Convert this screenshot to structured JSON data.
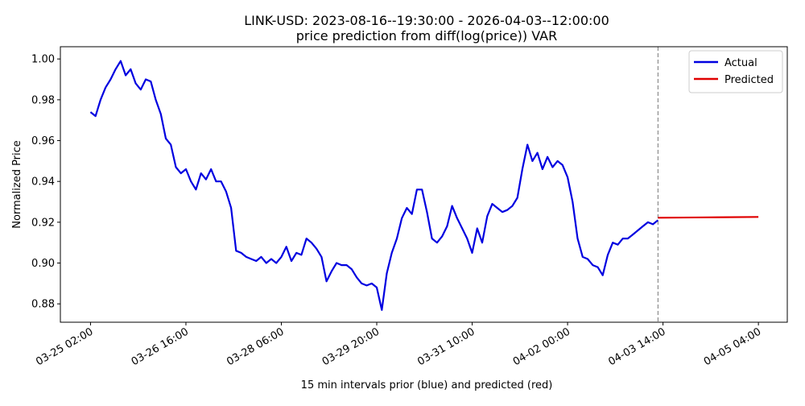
{
  "chart_data": {
    "type": "line",
    "title": "LINK-USD: 2023-08-16--19:30:00 - 2026-04-03--12:00:00",
    "subtitle": "price prediction from diff(log(price)) VAR",
    "xlabel": "15 min intervals prior (blue) and predicted (red)",
    "ylabel": "Normalized Price",
    "xlim": [
      "03-24 14:00",
      "04-05 15:30"
    ],
    "xticks": [
      "03-25 02:00",
      "03-26 16:00",
      "03-28 06:00",
      "03-29 20:00",
      "03-31 10:00",
      "04-02 00:00",
      "04-03 14:00",
      "04-05 04:00"
    ],
    "ylim": [
      0.871,
      1.006
    ],
    "yticks": [
      0.88,
      {
        "value": 0.9,
        "label": "0.90"
      },
      0.92,
      0.94,
      0.96,
      0.98,
      {
        "value": 1,
        "label": "1.00"
      }
    ],
    "vline": "04-03 12:00",
    "legend": "upper right",
    "series": [
      {
        "name": "Actual",
        "color": "#0000e0",
        "x": [
          "03-25 02:00",
          "03-25 04:00",
          "03-25 06:00",
          "03-25 08:00",
          "03-25 10:00",
          "03-25 12:00",
          "03-25 14:00",
          "03-25 16:00",
          "03-25 18:00",
          "03-25 20:00",
          "03-25 22:00",
          "03-26 00:00",
          "03-26 02:00",
          "03-26 04:00",
          "03-26 06:00",
          "03-26 08:00",
          "03-26 10:00",
          "03-26 12:00",
          "03-26 14:00",
          "03-26 16:00",
          "03-26 18:00",
          "03-26 20:00",
          "03-26 22:00",
          "03-27 00:00",
          "03-27 02:00",
          "03-27 04:00",
          "03-27 06:00",
          "03-27 08:00",
          "03-27 10:00",
          "03-27 12:00",
          "03-27 14:00",
          "03-27 16:00",
          "03-27 18:00",
          "03-27 20:00",
          "03-27 22:00",
          "03-28 00:00",
          "03-28 02:00",
          "03-28 04:00",
          "03-28 06:00",
          "03-28 08:00",
          "03-28 10:00",
          "03-28 12:00",
          "03-28 14:00",
          "03-28 16:00",
          "03-28 18:00",
          "03-28 20:00",
          "03-28 22:00",
          "03-29 00:00",
          "03-29 02:00",
          "03-29 04:00",
          "03-29 06:00",
          "03-29 08:00",
          "03-29 10:00",
          "03-29 12:00",
          "03-29 14:00",
          "03-29 16:00",
          "03-29 18:00",
          "03-29 20:00",
          "03-29 22:00",
          "03-30 00:00",
          "03-30 02:00",
          "03-30 04:00",
          "03-30 06:00",
          "03-30 08:00",
          "03-30 10:00",
          "03-30 12:00",
          "03-30 14:00",
          "03-30 16:00",
          "03-30 18:00",
          "03-30 20:00",
          "03-30 22:00",
          "03-31 00:00",
          "03-31 02:00",
          "03-31 04:00",
          "03-31 06:00",
          "03-31 08:00",
          "03-31 10:00",
          "03-31 12:00",
          "03-31 14:00",
          "03-31 16:00",
          "03-31 18:00",
          "03-31 20:00",
          "03-31 22:00",
          "04-01 00:00",
          "04-01 02:00",
          "04-01 04:00",
          "04-01 06:00",
          "04-01 08:00",
          "04-01 10:00",
          "04-01 12:00",
          "04-01 14:00",
          "04-01 16:00",
          "04-01 18:00",
          "04-01 20:00",
          "04-01 22:00",
          "04-02 00:00",
          "04-02 02:00",
          "04-02 04:00",
          "04-02 06:00",
          "04-02 08:00",
          "04-02 10:00",
          "04-02 12:00",
          "04-02 14:00",
          "04-02 16:00",
          "04-02 18:00",
          "04-02 20:00",
          "04-02 22:00",
          "04-03 00:00",
          "04-03 02:00",
          "04-03 04:00",
          "04-03 06:00",
          "04-03 08:00",
          "04-03 10:00",
          "04-03 12:00"
        ],
        "values": [
          0.974,
          0.972,
          0.98,
          0.986,
          0.99,
          0.995,
          0.999,
          0.992,
          0.995,
          0.988,
          0.985,
          0.99,
          0.989,
          0.98,
          0.973,
          0.961,
          0.958,
          0.947,
          0.944,
          0.946,
          0.94,
          0.936,
          0.944,
          0.941,
          0.946,
          0.94,
          0.94,
          0.935,
          0.927,
          0.906,
          0.905,
          0.903,
          0.902,
          0.901,
          0.903,
          0.9,
          0.902,
          0.9,
          0.903,
          0.908,
          0.901,
          0.905,
          0.904,
          0.912,
          0.91,
          0.907,
          0.903,
          0.891,
          0.896,
          0.9,
          0.899,
          0.899,
          0.897,
          0.893,
          0.89,
          0.889,
          0.89,
          0.888,
          0.877,
          0.895,
          0.905,
          0.912,
          0.922,
          0.927,
          0.924,
          0.936,
          0.936,
          0.925,
          0.912,
          0.91,
          0.913,
          0.918,
          0.928,
          0.922,
          0.917,
          0.912,
          0.905,
          0.917,
          0.91,
          0.923,
          0.929,
          0.927,
          0.925,
          0.926,
          0.928,
          0.932,
          0.946,
          0.958,
          0.95,
          0.954,
          0.946,
          0.952,
          0.947,
          0.95,
          0.948,
          0.942,
          0.93,
          0.912,
          0.903,
          0.902,
          0.899,
          0.898,
          0.894,
          0.904,
          0.91,
          0.909,
          0.912,
          0.912,
          0.914,
          0.916,
          0.918,
          0.92,
          0.919,
          0.921
        ]
      },
      {
        "name": "Predicted",
        "color": "#e00000",
        "x": [
          "04-03 12:00",
          "04-04 08:00",
          "04-05 04:00"
        ],
        "values": [
          0.9222,
          0.9224,
          0.9226
        ]
      }
    ]
  }
}
